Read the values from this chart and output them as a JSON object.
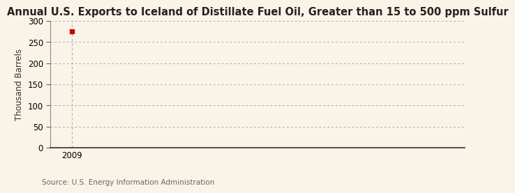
{
  "title": "Annual U.S. Exports to Iceland of Distillate Fuel Oil, Greater than 15 to 500 ppm Sulfur",
  "ylabel": "Thousand Barrels",
  "source": "Source: U.S. Energy Information Administration",
  "background_color": "#FAF4E8",
  "plot_bg_color": "#FAF4E8",
  "data_x": [
    2009
  ],
  "data_y": [
    275
  ],
  "data_color": "#CC0000",
  "xlim": [
    2008.4,
    2020
  ],
  "ylim": [
    0,
    300
  ],
  "yticks": [
    0,
    50,
    100,
    150,
    200,
    250,
    300
  ],
  "xticks": [
    2009
  ],
  "grid_color": "#AAAAAA",
  "vline_color": "#AAAAAA",
  "title_fontsize": 10.5,
  "label_fontsize": 8.5,
  "tick_fontsize": 8.5,
  "source_fontsize": 7.5
}
